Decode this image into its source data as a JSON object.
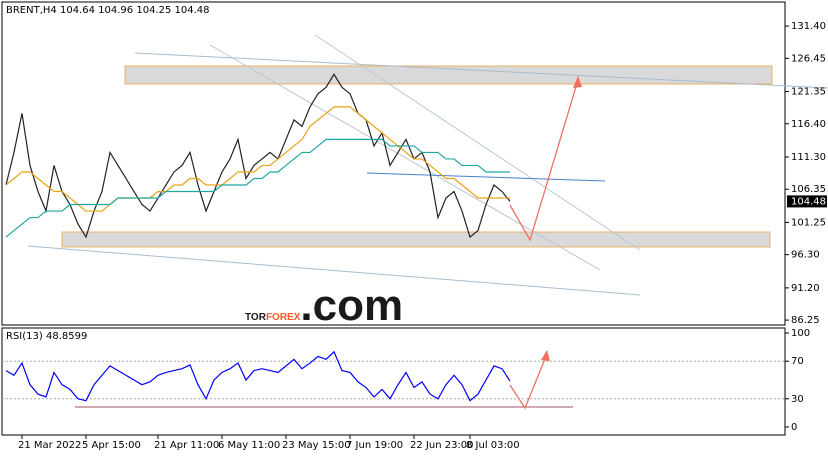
{
  "chart_data": [
    {
      "type": "line",
      "title": "BRENT,H4",
      "ohlc": [
        104.64,
        104.96,
        104.25,
        104.48
      ],
      "last_value": 104.48,
      "categories": [
        null,
        null,
        "21 Mar 2022",
        null,
        null,
        null,
        null,
        null,
        null,
        null,
        "5 Apr 15:00",
        null,
        null,
        null,
        null,
        null,
        null,
        null,
        null,
        "21 Apr 11:00",
        null,
        null,
        null,
        null,
        null,
        null,
        null,
        "6 May 11:00",
        null,
        null,
        null,
        null,
        null,
        null,
        null,
        "23 May 15:00",
        null,
        null,
        null,
        null,
        null,
        null,
        null,
        "7 Jun 19:00",
        null,
        null,
        null,
        null,
        null,
        null,
        null,
        "22 Jun 23:00",
        null,
        null,
        null,
        null,
        null,
        null,
        "8 Jul 03:00",
        null,
        null,
        null,
        null,
        null
      ],
      "series": [
        {
          "color": "#222222",
          "values": [
            107,
            112,
            118,
            110,
            106,
            103,
            110,
            106,
            104,
            101,
            99,
            103,
            106,
            112,
            110,
            108,
            106,
            104,
            103,
            105,
            107,
            109,
            110,
            112,
            107,
            103,
            106,
            109,
            111,
            114,
            108,
            110,
            111,
            112,
            111,
            114,
            117,
            116,
            119,
            121,
            122,
            124,
            122,
            121,
            118,
            117,
            113,
            115,
            110,
            112,
            114,
            111,
            112,
            109,
            102,
            105,
            106,
            103,
            99,
            100,
            104,
            107,
            106,
            104.48
          ]
        },
        {
          "color": "#e8a317",
          "values": [
            107,
            108,
            109,
            109,
            108,
            107,
            106,
            106,
            105,
            104,
            103,
            103,
            103,
            104,
            105,
            105,
            105,
            105,
            105,
            106,
            106,
            107,
            107,
            108,
            108,
            107,
            107,
            107,
            108,
            109,
            109,
            109,
            110,
            110,
            111,
            112,
            113,
            114,
            116,
            117,
            118,
            119,
            119,
            119,
            118,
            117,
            116,
            115,
            114,
            113,
            112,
            111,
            111,
            110,
            109,
            108,
            108,
            107,
            106,
            105,
            105,
            105,
            105,
            105
          ]
        },
        {
          "color": "#20a6a0",
          "values": [
            99,
            100,
            101,
            102,
            102,
            103,
            103,
            103,
            104,
            104,
            104,
            104,
            104,
            104,
            105,
            105,
            105,
            105,
            105,
            105,
            106,
            106,
            106,
            106,
            106,
            106,
            106,
            107,
            107,
            107,
            107,
            108,
            108,
            109,
            109,
            110,
            111,
            112,
            112,
            113,
            114,
            114,
            114,
            114,
            114,
            114,
            114,
            114,
            113,
            113,
            113,
            113,
            112,
            112,
            112,
            111,
            111,
            110,
            110,
            110,
            109,
            109,
            109,
            109
          ]
        }
      ],
      "ylim": [
        85.5,
        135.1
      ],
      "yticks": [
        {
          "value": 131.4,
          "label": "131.40"
        },
        {
          "value": 126.45,
          "label": "126.45"
        },
        {
          "value": 121.35,
          "label": "121.35"
        },
        {
          "value": 116.4,
          "label": "116.40"
        },
        {
          "value": 111.3,
          "label": "111.30"
        },
        {
          "value": 106.35,
          "label": "106.35"
        },
        {
          "value": 101.25,
          "label": "101.25"
        },
        {
          "value": 96.3,
          "label": "96.30"
        },
        {
          "value": 91.2,
          "label": "91.20"
        },
        {
          "value": 86.25,
          "label": "86.25"
        }
      ]
    },
    {
      "type": "line",
      "title": "RSI(13)",
      "last_value": 48.8599,
      "color": "#0000ff",
      "values": [
        60,
        55,
        68,
        45,
        35,
        32,
        58,
        45,
        40,
        30,
        28,
        45,
        55,
        65,
        60,
        55,
        50,
        45,
        48,
        55,
        58,
        60,
        62,
        66,
        45,
        30,
        50,
        58,
        62,
        68,
        50,
        60,
        62,
        60,
        58,
        65,
        72,
        62,
        68,
        75,
        72,
        80,
        60,
        58,
        48,
        42,
        32,
        40,
        30,
        45,
        58,
        42,
        48,
        35,
        30,
        45,
        55,
        45,
        28,
        35,
        50,
        65,
        62,
        48.8599
      ],
      "ylim": [
        -8.5,
        105.3
      ],
      "yticks": [
        100,
        70,
        30,
        0
      ]
    }
  ],
  "watermark": {
    "parts": [
      "TOR",
      "FOREX",
      ".com"
    ]
  }
}
